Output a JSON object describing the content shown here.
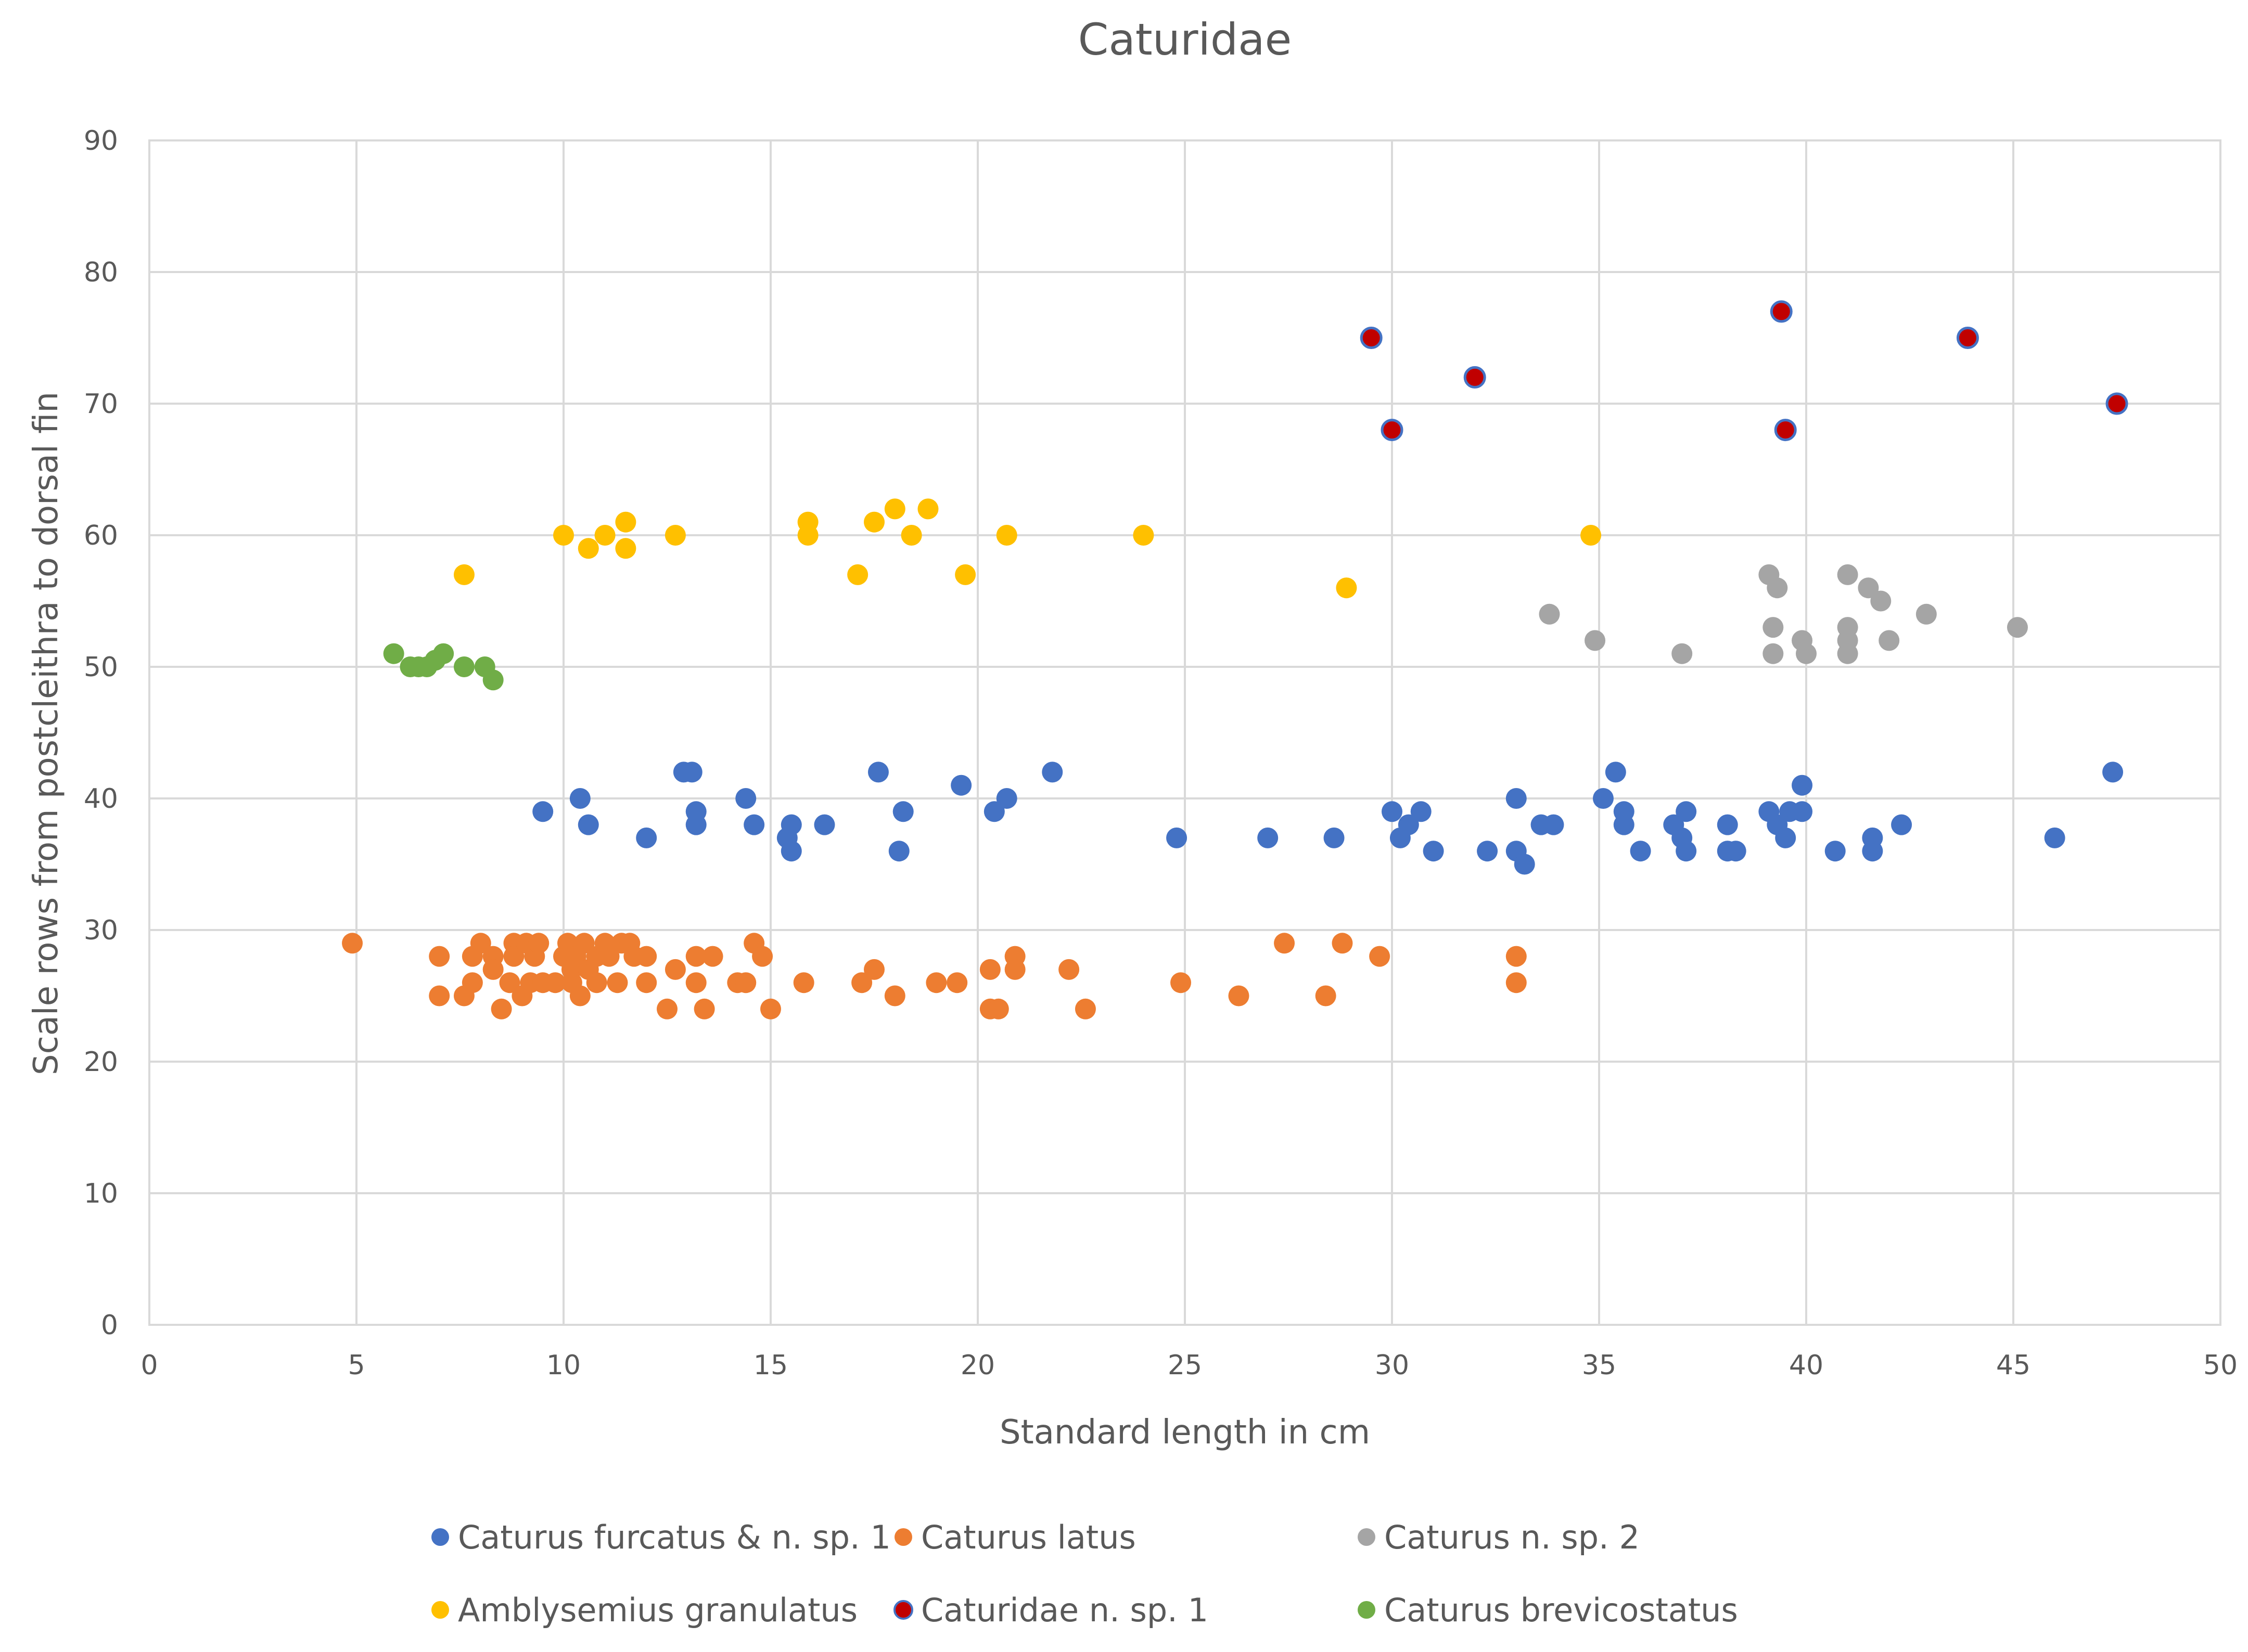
{
  "chart_data": {
    "type": "scatter",
    "title": "Caturidae",
    "xlabel": "Standard length in cm",
    "ylabel": "Scale rows from postcleithra to dorsal fin",
    "xlim": [
      0,
      50
    ],
    "ylim": [
      0,
      90
    ],
    "xticks": [
      0,
      5,
      10,
      15,
      20,
      25,
      30,
      35,
      40,
      45,
      50
    ],
    "yticks": [
      0,
      10,
      20,
      30,
      40,
      50,
      60,
      70,
      80,
      90
    ],
    "grid": true,
    "legend_position": "bottom",
    "series": [
      {
        "name": "Caturus furcatus & n. sp. 1",
        "color": "#4472C4",
        "points": [
          [
            9.5,
            39
          ],
          [
            10.4,
            40
          ],
          [
            10.6,
            38
          ],
          [
            12,
            37
          ],
          [
            12.9,
            42
          ],
          [
            13.1,
            42
          ],
          [
            13.2,
            39
          ],
          [
            13.2,
            38
          ],
          [
            14.4,
            40
          ],
          [
            14.6,
            38
          ],
          [
            15.4,
            37
          ],
          [
            15.5,
            36
          ],
          [
            15.5,
            38
          ],
          [
            16.3,
            38
          ],
          [
            17.6,
            42
          ],
          [
            18.1,
            36
          ],
          [
            18.2,
            39
          ],
          [
            19.6,
            41
          ],
          [
            20.4,
            39
          ],
          [
            20.7,
            40
          ],
          [
            21.8,
            42
          ],
          [
            24.8,
            37
          ],
          [
            27,
            37
          ],
          [
            28.6,
            37
          ],
          [
            30,
            39
          ],
          [
            30.2,
            37
          ],
          [
            30.4,
            38
          ],
          [
            30.7,
            39
          ],
          [
            31,
            36
          ],
          [
            32.3,
            36
          ],
          [
            33,
            40
          ],
          [
            33,
            36
          ],
          [
            33.2,
            35
          ],
          [
            33.6,
            38
          ],
          [
            33.9,
            38
          ],
          [
            35.1,
            40
          ],
          [
            35.4,
            42
          ],
          [
            35.6,
            39
          ],
          [
            35.6,
            38
          ],
          [
            36,
            36
          ],
          [
            36.8,
            38
          ],
          [
            37,
            37
          ],
          [
            37.1,
            39
          ],
          [
            37.1,
            36
          ],
          [
            38.1,
            38
          ],
          [
            38.1,
            36
          ],
          [
            38.3,
            36
          ],
          [
            39.1,
            39
          ],
          [
            39.3,
            38
          ],
          [
            39.5,
            37
          ],
          [
            39.6,
            39
          ],
          [
            39.9,
            41
          ],
          [
            39.9,
            39
          ],
          [
            40.7,
            36
          ],
          [
            41.6,
            37
          ],
          [
            41.6,
            36
          ],
          [
            42.3,
            38
          ],
          [
            46,
            37
          ],
          [
            47.4,
            42
          ]
        ]
      },
      {
        "name": "Caturus latus",
        "color": "#ED7D31",
        "points": [
          [
            4.9,
            29
          ],
          [
            7,
            28
          ],
          [
            7,
            25
          ],
          [
            7.6,
            25
          ],
          [
            7.8,
            28
          ],
          [
            7.8,
            26
          ],
          [
            8,
            29
          ],
          [
            8.3,
            28
          ],
          [
            8.3,
            27
          ],
          [
            8.5,
            24
          ],
          [
            8.7,
            26
          ],
          [
            8.8,
            29
          ],
          [
            8.8,
            28
          ],
          [
            9,
            25
          ],
          [
            9.1,
            29
          ],
          [
            9.2,
            26
          ],
          [
            9.3,
            28
          ],
          [
            9.4,
            29
          ],
          [
            9.5,
            26
          ],
          [
            9.8,
            26
          ],
          [
            10,
            28
          ],
          [
            10.1,
            29
          ],
          [
            10.2,
            27
          ],
          [
            10.2,
            26
          ],
          [
            10.3,
            28
          ],
          [
            10.4,
            25
          ],
          [
            10.5,
            29
          ],
          [
            10.6,
            27
          ],
          [
            10.8,
            28
          ],
          [
            10.8,
            26
          ],
          [
            11,
            29
          ],
          [
            11.1,
            28
          ],
          [
            11.3,
            26
          ],
          [
            11.4,
            29
          ],
          [
            11.6,
            29
          ],
          [
            11.7,
            28
          ],
          [
            12,
            28
          ],
          [
            12,
            26
          ],
          [
            12.5,
            24
          ],
          [
            12.7,
            27
          ],
          [
            13.2,
            28
          ],
          [
            13.2,
            26
          ],
          [
            13.4,
            24
          ],
          [
            13.6,
            28
          ],
          [
            14.2,
            26
          ],
          [
            14.4,
            26
          ],
          [
            14.6,
            29
          ],
          [
            14.8,
            28
          ],
          [
            15,
            24
          ],
          [
            15.8,
            26
          ],
          [
            17.2,
            26
          ],
          [
            17.5,
            27
          ],
          [
            18,
            25
          ],
          [
            19,
            26
          ],
          [
            19.5,
            26
          ],
          [
            20.3,
            27
          ],
          [
            20.3,
            24
          ],
          [
            20.5,
            24
          ],
          [
            20.9,
            28
          ],
          [
            20.9,
            27
          ],
          [
            22.2,
            27
          ],
          [
            22.6,
            24
          ],
          [
            24.9,
            26
          ],
          [
            26.3,
            25
          ],
          [
            27.4,
            29
          ],
          [
            28.4,
            25
          ],
          [
            28.8,
            29
          ],
          [
            29.7,
            28
          ],
          [
            33,
            28
          ],
          [
            33,
            26
          ]
        ]
      },
      {
        "name": "Caturus n. sp. 2",
        "color": "#A5A5A5",
        "points": [
          [
            33.8,
            54
          ],
          [
            34.9,
            52
          ],
          [
            37,
            51
          ],
          [
            39.1,
            57
          ],
          [
            39.2,
            53
          ],
          [
            39.2,
            51
          ],
          [
            39.3,
            56
          ],
          [
            39.9,
            52
          ],
          [
            40,
            51
          ],
          [
            41,
            57
          ],
          [
            41,
            53
          ],
          [
            41,
            52
          ],
          [
            41,
            51
          ],
          [
            41.5,
            56
          ],
          [
            41.8,
            55
          ],
          [
            42,
            52
          ],
          [
            42.9,
            54
          ],
          [
            45.1,
            53
          ]
        ]
      },
      {
        "name": "Amblysemius granulatus",
        "color": "#FFC000",
        "points": [
          [
            7.6,
            57
          ],
          [
            10,
            60
          ],
          [
            10.6,
            59
          ],
          [
            11,
            60
          ],
          [
            11.5,
            61
          ],
          [
            11.5,
            59
          ],
          [
            12.7,
            60
          ],
          [
            15.9,
            61
          ],
          [
            15.9,
            60
          ],
          [
            17.1,
            57
          ],
          [
            17.5,
            61
          ],
          [
            18,
            62
          ],
          [
            18.4,
            60
          ],
          [
            18.8,
            62
          ],
          [
            19.7,
            57
          ],
          [
            20.7,
            60
          ],
          [
            24,
            60
          ],
          [
            28.9,
            56
          ],
          [
            34.8,
            60
          ]
        ]
      },
      {
        "name": "Caturidae n. sp. 1",
        "color": "#C00000",
        "edge": "#4472C4",
        "points": [
          [
            29.5,
            75
          ],
          [
            30,
            68
          ],
          [
            32,
            72
          ],
          [
            39.4,
            77
          ],
          [
            39.5,
            68
          ],
          [
            43.9,
            75
          ],
          [
            47.5,
            70
          ]
        ]
      },
      {
        "name": "Caturus brevicostatus",
        "color": "#70AD47",
        "points": [
          [
            5.9,
            51
          ],
          [
            6.3,
            50
          ],
          [
            6.5,
            50
          ],
          [
            6.7,
            50
          ],
          [
            6.9,
            50.5
          ],
          [
            7.1,
            51
          ],
          [
            7.6,
            50
          ],
          [
            8.1,
            50
          ],
          [
            8.3,
            49
          ]
        ]
      }
    ]
  }
}
